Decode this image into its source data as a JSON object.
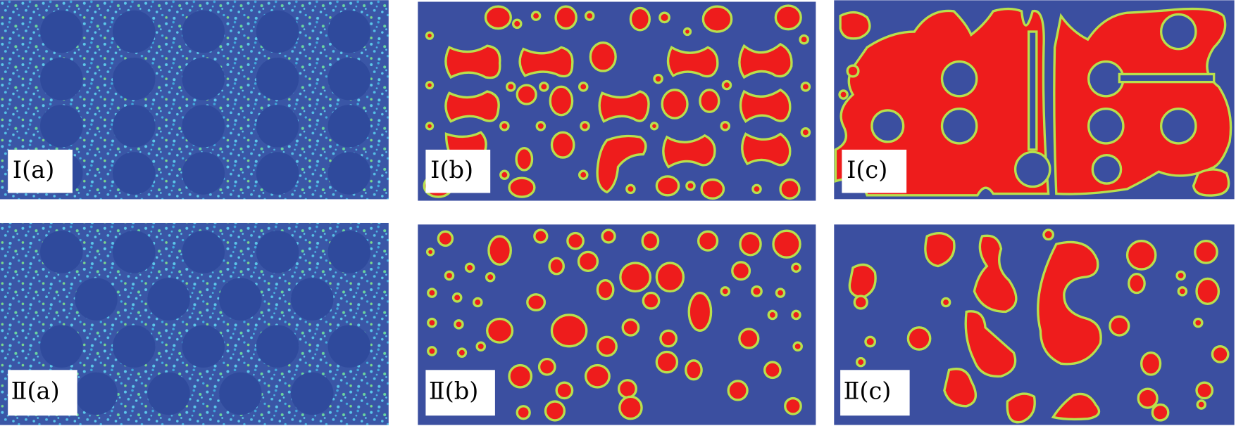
{
  "panels": [
    {
      "label": "Ⅰ(a)"
    },
    {
      "label": "Ⅰ(b)"
    },
    {
      "label": "Ⅰ(c)"
    },
    {
      "label": "Ⅱ(a)"
    },
    {
      "label": "Ⅱ(b)"
    },
    {
      "label": "Ⅱ(c)"
    }
  ]
}
